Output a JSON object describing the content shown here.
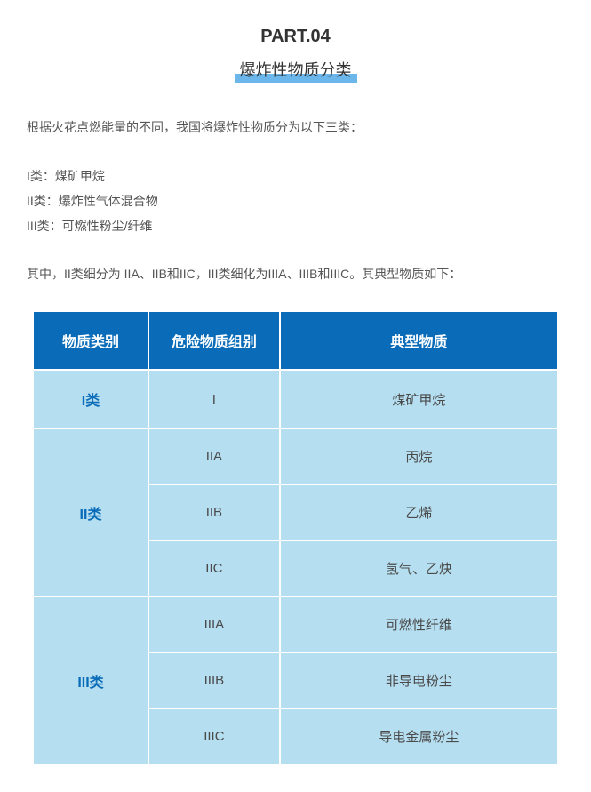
{
  "part_label": "PART.04",
  "title": "爆炸性物质分类",
  "intro": "根据火花点燃能量的不同，我国将爆炸性物质分为以下三类：",
  "categories_list": [
    "I类：煤矿甲烷",
    "II类：爆炸性气体混合物",
    "III类：可燃性粉尘/纤维"
  ],
  "sub_note": "其中，II类细分为 IIA、IIB和IIC，III类细化为IIIA、IIIB和IIIC。其典型物质如下：",
  "table": {
    "headers": [
      "物质类别",
      "危险物质组别",
      "典型物质"
    ],
    "header_bg": "#0a6cb8",
    "header_fg": "#ffffff",
    "cell_bg": "#b5def0",
    "cell_fg": "#4a4a4a",
    "category_fg": "#0a6cb8",
    "border_color": "#ffffff",
    "col_widths": [
      "22%",
      "25%",
      "53%"
    ],
    "groups": [
      {
        "category": "I类",
        "rows": [
          {
            "group": "I",
            "substance": "煤矿甲烷"
          }
        ]
      },
      {
        "category": "II类",
        "rows": [
          {
            "group": "IIA",
            "substance": "丙烷"
          },
          {
            "group": "IIB",
            "substance": "乙烯"
          },
          {
            "group": "IIC",
            "substance": "氢气、乙炔"
          }
        ]
      },
      {
        "category": "III类",
        "rows": [
          {
            "group": "IIIA",
            "substance": "可燃性纤维"
          },
          {
            "group": "IIIB",
            "substance": "非导电粉尘"
          },
          {
            "group": "IIIC",
            "substance": "导电金属粉尘"
          }
        ]
      }
    ]
  },
  "colors": {
    "title_underline": "#6bb6ea",
    "text": "#555555",
    "background": "#ffffff"
  }
}
